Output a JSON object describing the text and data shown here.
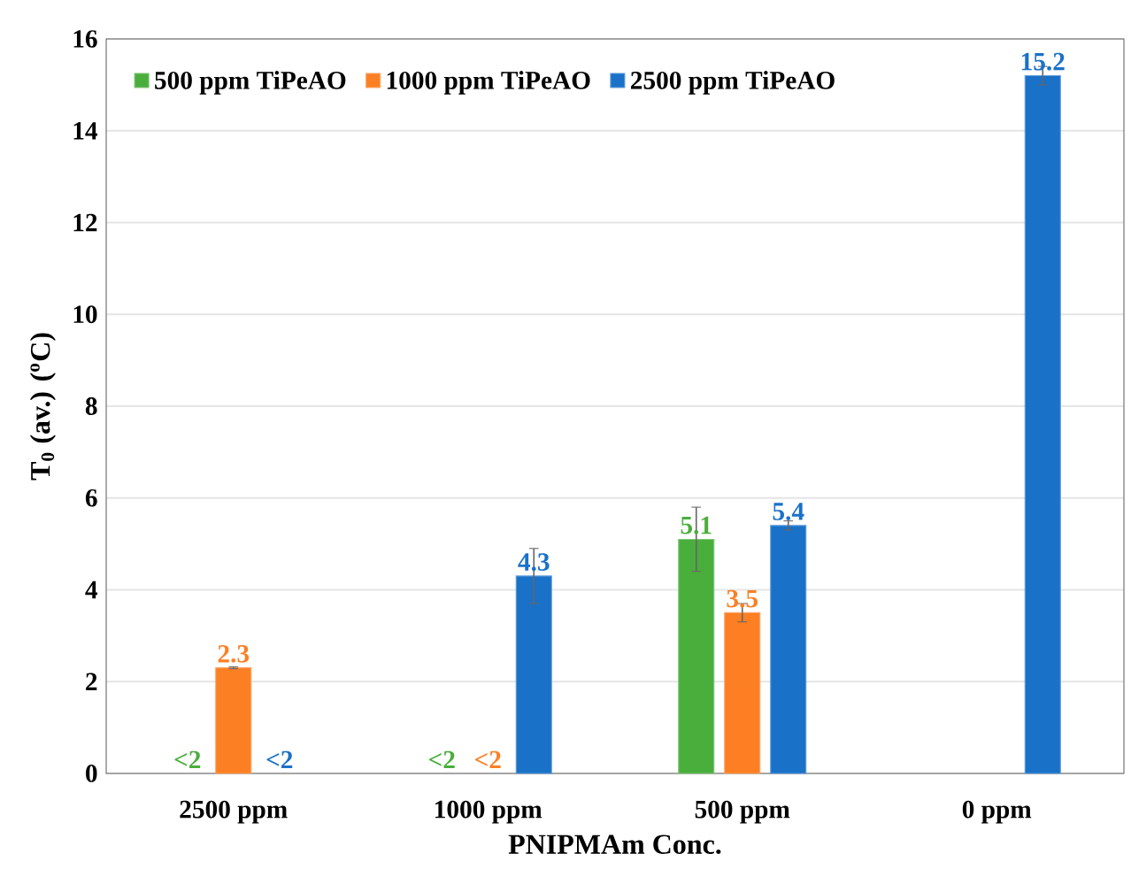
{
  "chart_data": {
    "type": "bar",
    "xlabel": "PNIPMAm Conc.",
    "ylabel": "T$_{0}$ (av.) ($^{o}$C)",
    "categories": [
      "2500 ppm",
      "1000 ppm",
      "500 ppm",
      "0 ppm"
    ],
    "series": [
      {
        "name": "500 ppm TiPeAO",
        "color": "#4aae3c",
        "values": [
          null,
          null,
          5.1,
          null
        ],
        "errors": [
          null,
          null,
          0.7,
          null
        ],
        "value_labels": [
          "<2",
          "<2",
          "5.1",
          null
        ]
      },
      {
        "name": "1000 ppm TiPeAO",
        "color": "#fd7f23",
        "values": [
          2.3,
          null,
          3.5,
          null
        ],
        "errors": [
          0.02,
          null,
          0.2,
          null
        ],
        "value_labels": [
          "2.3",
          "<2",
          "3.5",
          null
        ]
      },
      {
        "name": "2500 ppm TiPeAO",
        "color": "#1a71c8",
        "values": [
          null,
          4.3,
          5.4,
          15.2
        ],
        "errors": [
          null,
          0.6,
          0.1,
          0.2
        ],
        "value_labels": [
          "<2",
          "4.3",
          "5.4",
          "15.2"
        ]
      }
    ],
    "ylim": [
      0,
      16
    ],
    "yticks": [
      0,
      2,
      4,
      6,
      8,
      10,
      12,
      14,
      16
    ],
    "grid": "y",
    "legend": "top left"
  }
}
